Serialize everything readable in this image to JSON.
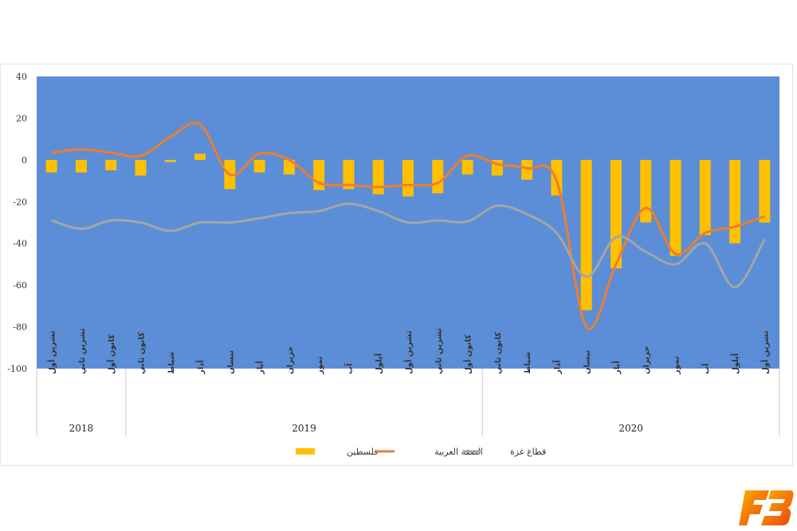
{
  "chart_data": {
    "type": "bar",
    "title": "",
    "xlabel": "",
    "ylabel": "",
    "ylim": [
      -100,
      40
    ],
    "yticks": [
      40,
      20,
      0,
      -20,
      -40,
      -60,
      -80,
      -100
    ],
    "grid": false,
    "plot_background": "#5b8ed6",
    "categories": [
      "تشرين أول",
      "تشرين ثاني",
      "كانون أول",
      "كانون ثاني",
      "شباط",
      "آذار",
      "نيسان",
      "أيار",
      "حزيران",
      "تموز",
      "آب",
      "أيلول",
      "تشرين أول",
      "تشرين ثاني",
      "كانون أول",
      "كانون ثاني",
      "شباط",
      "آذار",
      "نيسان",
      "أيار",
      "حزيران",
      "تموز",
      "آب",
      "أيلول",
      "تشرين أول"
    ],
    "year_groups": [
      {
        "label": "2018",
        "start": 0,
        "end": 2
      },
      {
        "label": "2019",
        "start": 3,
        "end": 14
      },
      {
        "label": "2020",
        "start": 15,
        "end": 24
      }
    ],
    "series": [
      {
        "name": "فلسطين",
        "kind": "bar",
        "color": "#ffc000",
        "values": [
          -6,
          -6,
          -5,
          -7.5,
          -1,
          3,
          -14,
          -6,
          -7,
          -14.5,
          -14,
          -16.5,
          -17.5,
          -16,
          -7,
          -7.5,
          -9.5,
          -17,
          -72,
          -52,
          -30,
          -46,
          -36,
          -40,
          -30
        ]
      },
      {
        "name": "الضفة الغربية",
        "kind": "line",
        "color": "#ed7d31",
        "values": [
          3.5,
          5,
          3.5,
          2,
          11,
          17,
          -7,
          3,
          0,
          -11,
          -12,
          -13,
          -12,
          -11,
          2,
          -2,
          -4,
          -10,
          -80,
          -50,
          -23,
          -45,
          -35,
          -32,
          -27
        ]
      },
      {
        "name": "قطاع غزة",
        "kind": "line",
        "color": "#a5a5a5",
        "values": [
          -29,
          -33,
          -29,
          -30,
          -34,
          -30,
          -30,
          -28,
          -25.5,
          -24.5,
          -21,
          -24.5,
          -30,
          -29,
          -29.5,
          -22,
          -26,
          -35,
          -56,
          -37,
          -44,
          -50,
          -40,
          -61,
          -38
        ]
      }
    ]
  }
}
